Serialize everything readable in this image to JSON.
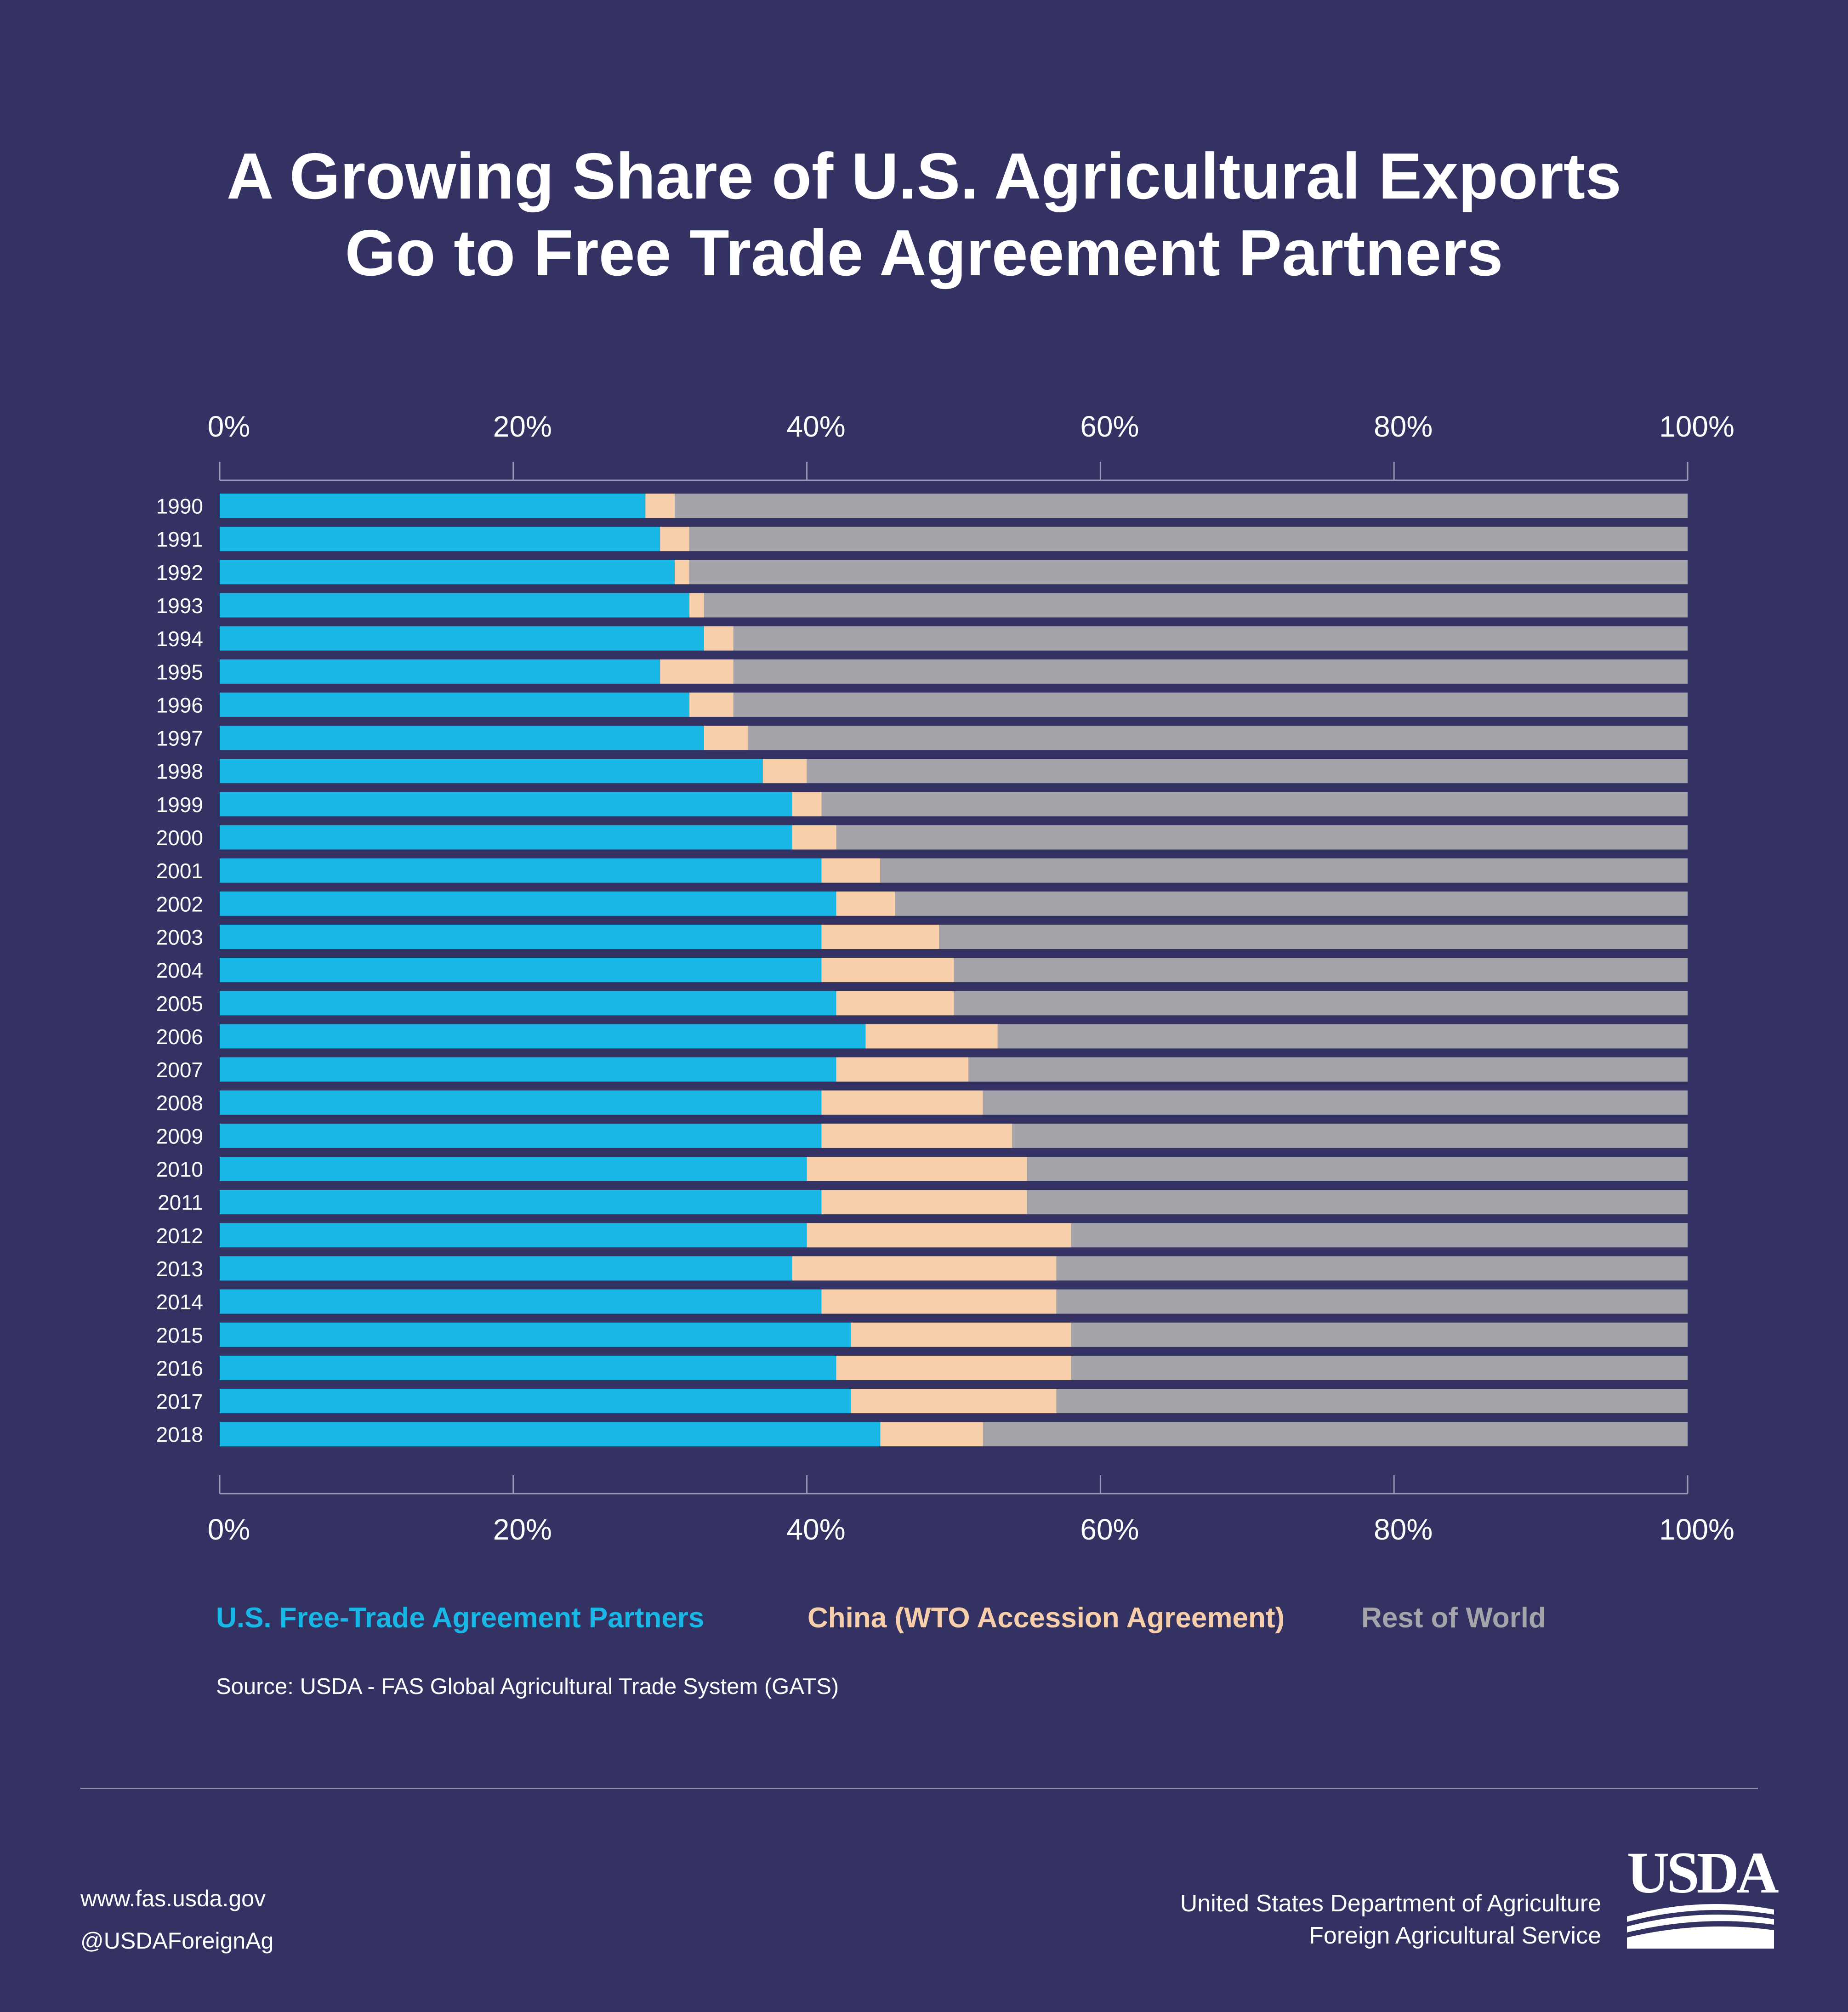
{
  "title_lines": [
    "A Growing Share of U.S. Agricultural Exports",
    "Go to Free Trade Agreement Partners"
  ],
  "chart_data": {
    "type": "bar",
    "orientation": "horizontal",
    "stacked": true,
    "title": "A Growing Share of U.S. Agricultural Exports Go to Free Trade Agreement Partners",
    "xlim": [
      0,
      100
    ],
    "x_ticks": [
      "0%",
      "20%",
      "40%",
      "60%",
      "80%",
      "100%"
    ],
    "categories": [
      "1990",
      "1991",
      "1992",
      "1993",
      "1994",
      "1995",
      "1996",
      "1997",
      "1998",
      "1999",
      "2000",
      "2001",
      "2002",
      "2003",
      "2004",
      "2005",
      "2006",
      "2007",
      "2008",
      "2009",
      "2010",
      "2011",
      "2012",
      "2013",
      "2014",
      "2015",
      "2016",
      "2017",
      "2018"
    ],
    "series": [
      {
        "name": "U.S. Free-Trade Agreement Partners",
        "color": "#19b7e5",
        "values": [
          29,
          30,
          31,
          32,
          33,
          30,
          32,
          33,
          37,
          39,
          39,
          41,
          42,
          41,
          41,
          42,
          44,
          42,
          41,
          41,
          40,
          41,
          40,
          39,
          41,
          43,
          42,
          43,
          45
        ]
      },
      {
        "name": "China (WTO Accession Agreement)",
        "color": "#f7d0ab",
        "values": [
          2,
          2,
          1,
          1,
          2,
          5,
          3,
          3,
          3,
          2,
          3,
          4,
          4,
          8,
          9,
          8,
          9,
          9,
          11,
          13,
          15,
          14,
          18,
          18,
          16,
          15,
          16,
          14,
          7
        ]
      },
      {
        "name": "Rest of World",
        "color": "#a4a4aa",
        "values": [
          69,
          68,
          68,
          67,
          65,
          65,
          65,
          64,
          60,
          59,
          58,
          55,
          54,
          51,
          50,
          50,
          47,
          49,
          48,
          46,
          45,
          45,
          42,
          43,
          43,
          42,
          42,
          43,
          48
        ]
      }
    ],
    "grid": false,
    "legend_position": "bottom"
  },
  "source": "Source: USDA - FAS  Global Agricultural Trade System (GATS)",
  "footer": {
    "website": "www.fas.usda.gov",
    "handle": "@USDAForeignAg",
    "org_line1": "United States Department of Agriculture",
    "org_line2": "Foreign Agricultural Service",
    "logo_text": "USDA"
  }
}
